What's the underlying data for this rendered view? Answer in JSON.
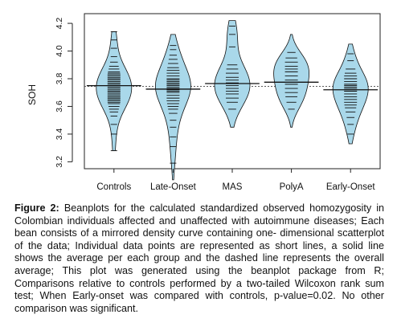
{
  "chart_data": {
    "type": "beanplot",
    "title": "",
    "xlabel": "",
    "ylabel": "SOH",
    "ylim": [
      3.15,
      4.27
    ],
    "yticks": [
      "3.2",
      "3.4",
      "3.6",
      "3.8",
      "4.0",
      "4.2"
    ],
    "grid": false,
    "overall_average": 3.745,
    "categories": [
      "Controls",
      "Late-Onset",
      "MAS",
      "PolyA",
      "Early-Onset"
    ],
    "series": [
      {
        "name": "Controls",
        "average": 3.75,
        "range": [
          3.28,
          4.14
        ],
        "points": [
          3.28,
          3.4,
          3.47,
          3.53,
          3.56,
          3.58,
          3.6,
          3.62,
          3.63,
          3.64,
          3.65,
          3.66,
          3.67,
          3.68,
          3.69,
          3.7,
          3.71,
          3.72,
          3.73,
          3.74,
          3.75,
          3.76,
          3.77,
          3.78,
          3.79,
          3.8,
          3.81,
          3.82,
          3.83,
          3.84,
          3.85,
          3.87,
          3.89,
          3.92,
          3.96,
          4.02,
          4.08,
          4.14
        ]
      },
      {
        "name": "Late-Onset",
        "average": 3.725,
        "range": [
          3.07,
          4.12
        ],
        "points": [
          3.19,
          3.31,
          3.38,
          3.45,
          3.5,
          3.55,
          3.58,
          3.6,
          3.62,
          3.64,
          3.66,
          3.68,
          3.7,
          3.71,
          3.72,
          3.73,
          3.74,
          3.75,
          3.76,
          3.77,
          3.78,
          3.79,
          3.8,
          3.82,
          3.84,
          3.86,
          3.88,
          3.91,
          3.94,
          3.97,
          4.01,
          4.04
        ]
      },
      {
        "name": "MAS",
        "average": 3.765,
        "range": [
          3.45,
          4.22
        ],
        "points": [
          3.58,
          3.63,
          3.66,
          3.69,
          3.71,
          3.73,
          3.75,
          3.77,
          3.79,
          3.81,
          3.84,
          3.87,
          3.9,
          4.03,
          4.12,
          4.18
        ]
      },
      {
        "name": "PolyA",
        "average": 3.775,
        "range": [
          3.45,
          4.12
        ],
        "points": [
          3.58,
          3.63,
          3.67,
          3.7,
          3.73,
          3.76,
          3.79,
          3.82,
          3.85,
          3.87,
          3.89,
          3.92,
          3.95,
          3.99
        ]
      },
      {
        "name": "Early-Onset",
        "average": 3.72,
        "range": [
          3.33,
          4.05
        ],
        "points": [
          3.4,
          3.47,
          3.52,
          3.56,
          3.59,
          3.61,
          3.63,
          3.65,
          3.67,
          3.69,
          3.71,
          3.73,
          3.74,
          3.75,
          3.76,
          3.78,
          3.8,
          3.82,
          3.84,
          3.87,
          3.93,
          3.98
        ]
      }
    ],
    "colors": {
      "bean_fill": "#a9d8ea",
      "bean_stroke": "#111111",
      "lines": "#111111"
    }
  },
  "caption": {
    "label": "Figure 2:",
    "text": "Beanplots for the calculated standardized observed homozygosity in Colombian individuals affected and unaffected with autoimmune diseases; Each bean consists of a mirrored density curve containing one- dimensional scatterplot of the data; Individual data points are represented as short lines, a solid line shows the average per each group and the dashed line represents the overall average; This plot was generated using the beanplot package from R; Comparisons relative to controls performed by a two-tailed Wilcoxon rank sum test; When Early-onset was compared with controls, p-value=0.02. No other comparison was significant."
  }
}
